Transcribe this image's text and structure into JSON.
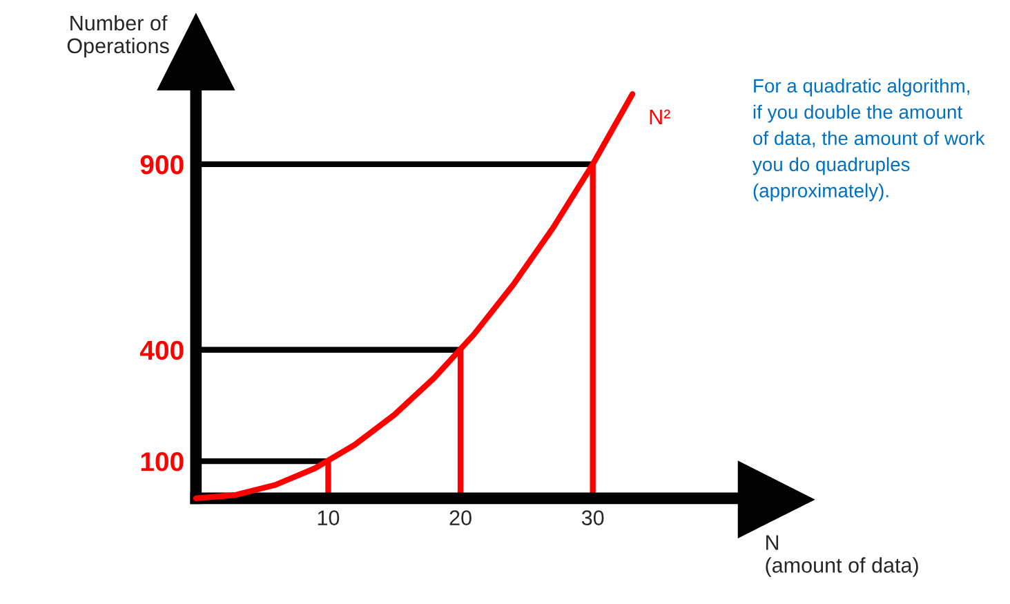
{
  "chart_data": {
    "type": "line",
    "xlabel": "N\n(amount of data)",
    "ylabel": "Number of\nOperations",
    "x": [
      0,
      3,
      6,
      9,
      12,
      15,
      18,
      21,
      24,
      27,
      30,
      33
    ],
    "series": [
      {
        "name": "N²",
        "color": "#ff0000",
        "values": [
          0,
          9,
          36,
          81,
          144,
          225,
          324,
          441,
          576,
          729,
          900,
          1089
        ]
      }
    ],
    "xlim": [
      0,
      41
    ],
    "ylim": [
      0,
      1100
    ],
    "xticks": [
      10,
      20,
      30
    ],
    "yticks": [
      100,
      400,
      900
    ],
    "ref_lines": [
      {
        "axis": "y",
        "value": 100,
        "color": "#000000"
      },
      {
        "axis": "y",
        "value": 400,
        "color": "#000000"
      },
      {
        "axis": "y",
        "value": 900,
        "color": "#000000"
      },
      {
        "axis": "x",
        "value": 10,
        "color": "#ff0000"
      },
      {
        "axis": "x",
        "value": 20,
        "color": "#ff0000"
      },
      {
        "axis": "x",
        "value": 30,
        "color": "#ff0000"
      }
    ],
    "annotations": [
      "For a quadratic algorithm,\nif you double the amount\nof data, the amount of work\nyou do quadruples\n(approximately)."
    ],
    "grid": false,
    "legend": false,
    "marker": "none",
    "line_style": "solid"
  }
}
